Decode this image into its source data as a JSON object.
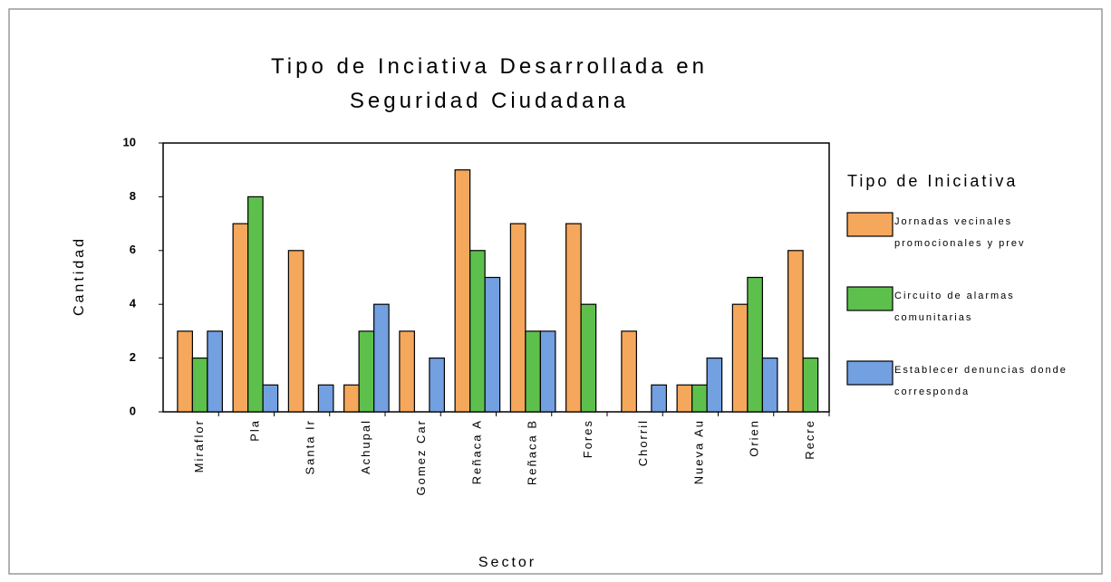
{
  "chart_data": {
    "type": "bar",
    "title": "Tipo de Inciativa Desarrollada en Seguridad Ciudadana",
    "x_label": "Sector",
    "y_label": "Cantidad",
    "legend_title": "Tipo de Iniciativa",
    "legend": "right",
    "categories": [
      "Miraflor",
      "Pla",
      "Santa Ir",
      "Achupal",
      "Gomez Car",
      "Reñaca A",
      "Reñaca B",
      "Fores",
      "Chorril",
      "Nueva Au",
      "Orien",
      "Recre"
    ],
    "series": [
      {
        "name": "Jornadas vecinales promocionales y prev",
        "color": "#f5a75c",
        "values": [
          3,
          7,
          6,
          1,
          3,
          9,
          7,
          7,
          3,
          1,
          4,
          6
        ]
      },
      {
        "name": "Circuito de alarmas comunitarias",
        "color": "#5ec04c",
        "values": [
          2,
          8,
          0,
          3,
          0,
          6,
          3,
          4,
          0,
          1,
          5,
          2
        ]
      },
      {
        "name": "Establecer denuncias donde corresponda",
        "color": "#72a0e0",
        "values": [
          3,
          1,
          1,
          4,
          2,
          5,
          3,
          0,
          1,
          2,
          2,
          0
        ]
      }
    ],
    "ylim": [
      0,
      10
    ],
    "yticks": [
      0,
      2,
      4,
      6,
      8,
      10
    ]
  }
}
